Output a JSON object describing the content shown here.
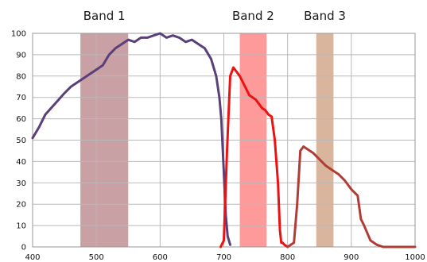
{
  "chart_data": {
    "type": "line",
    "title": "",
    "xlabel": "",
    "ylabel": "",
    "xlim": [
      400,
      1000
    ],
    "ylim": [
      0,
      100
    ],
    "grid": true,
    "legend": "none",
    "x_ticks": [
      "400",
      "500",
      "600",
      "700",
      "800",
      "900",
      "1000"
    ],
    "y_ticks": [
      "0",
      "10",
      "20",
      "30",
      "40",
      "50",
      "60",
      "70",
      "80",
      "90",
      "100"
    ],
    "bands": [
      {
        "label": "Band 1",
        "start": 475,
        "end": 550,
        "color": "#c9a0a3"
      },
      {
        "label": "Band 2",
        "start": 725,
        "end": 767,
        "color": "#ff9a9a"
      },
      {
        "label": "Band 3",
        "start": 845,
        "end": 872,
        "color": "#d9b59e"
      }
    ],
    "series": [
      {
        "color": "#5b3f7a",
        "x": [
          400,
          410,
          420,
          435,
          450,
          460,
          470,
          480,
          490,
          500,
          510,
          520,
          530,
          540,
          550,
          560,
          570,
          580,
          590,
          600,
          610,
          620,
          630,
          640,
          650,
          660,
          670,
          680,
          688,
          693,
          696,
          700,
          703,
          706,
          710
        ],
        "y": [
          51,
          56,
          62,
          67,
          72,
          75,
          77,
          79,
          81,
          83,
          85,
          90,
          93,
          95,
          97,
          96,
          98,
          98,
          99,
          100,
          98,
          99,
          98,
          96,
          97,
          95,
          93,
          88,
          80,
          70,
          60,
          35,
          15,
          5,
          1
        ]
      },
      {
        "color": "#ee1111",
        "x": [
          695,
          700,
          705,
          710,
          715,
          720,
          725,
          730,
          740,
          750,
          760,
          765,
          770,
          775,
          780,
          785,
          788,
          790,
          792,
          795,
          800
        ],
        "y": [
          0,
          3,
          45,
          80,
          84,
          82,
          80,
          77,
          71,
          69,
          65,
          64,
          62,
          61,
          50,
          30,
          8,
          2,
          2,
          1,
          0
        ]
      },
      {
        "color": "#b03d35",
        "x": [
          800,
          810,
          815,
          820,
          825,
          830,
          840,
          850,
          860,
          870,
          880,
          890,
          900,
          910,
          915,
          920,
          930,
          940,
          950,
          960,
          980,
          1000
        ],
        "y": [
          0,
          2,
          20,
          45,
          47,
          46,
          44,
          41,
          38,
          36,
          34,
          31,
          27,
          24,
          13,
          10,
          3,
          1,
          0,
          0,
          0,
          0
        ]
      }
    ]
  }
}
